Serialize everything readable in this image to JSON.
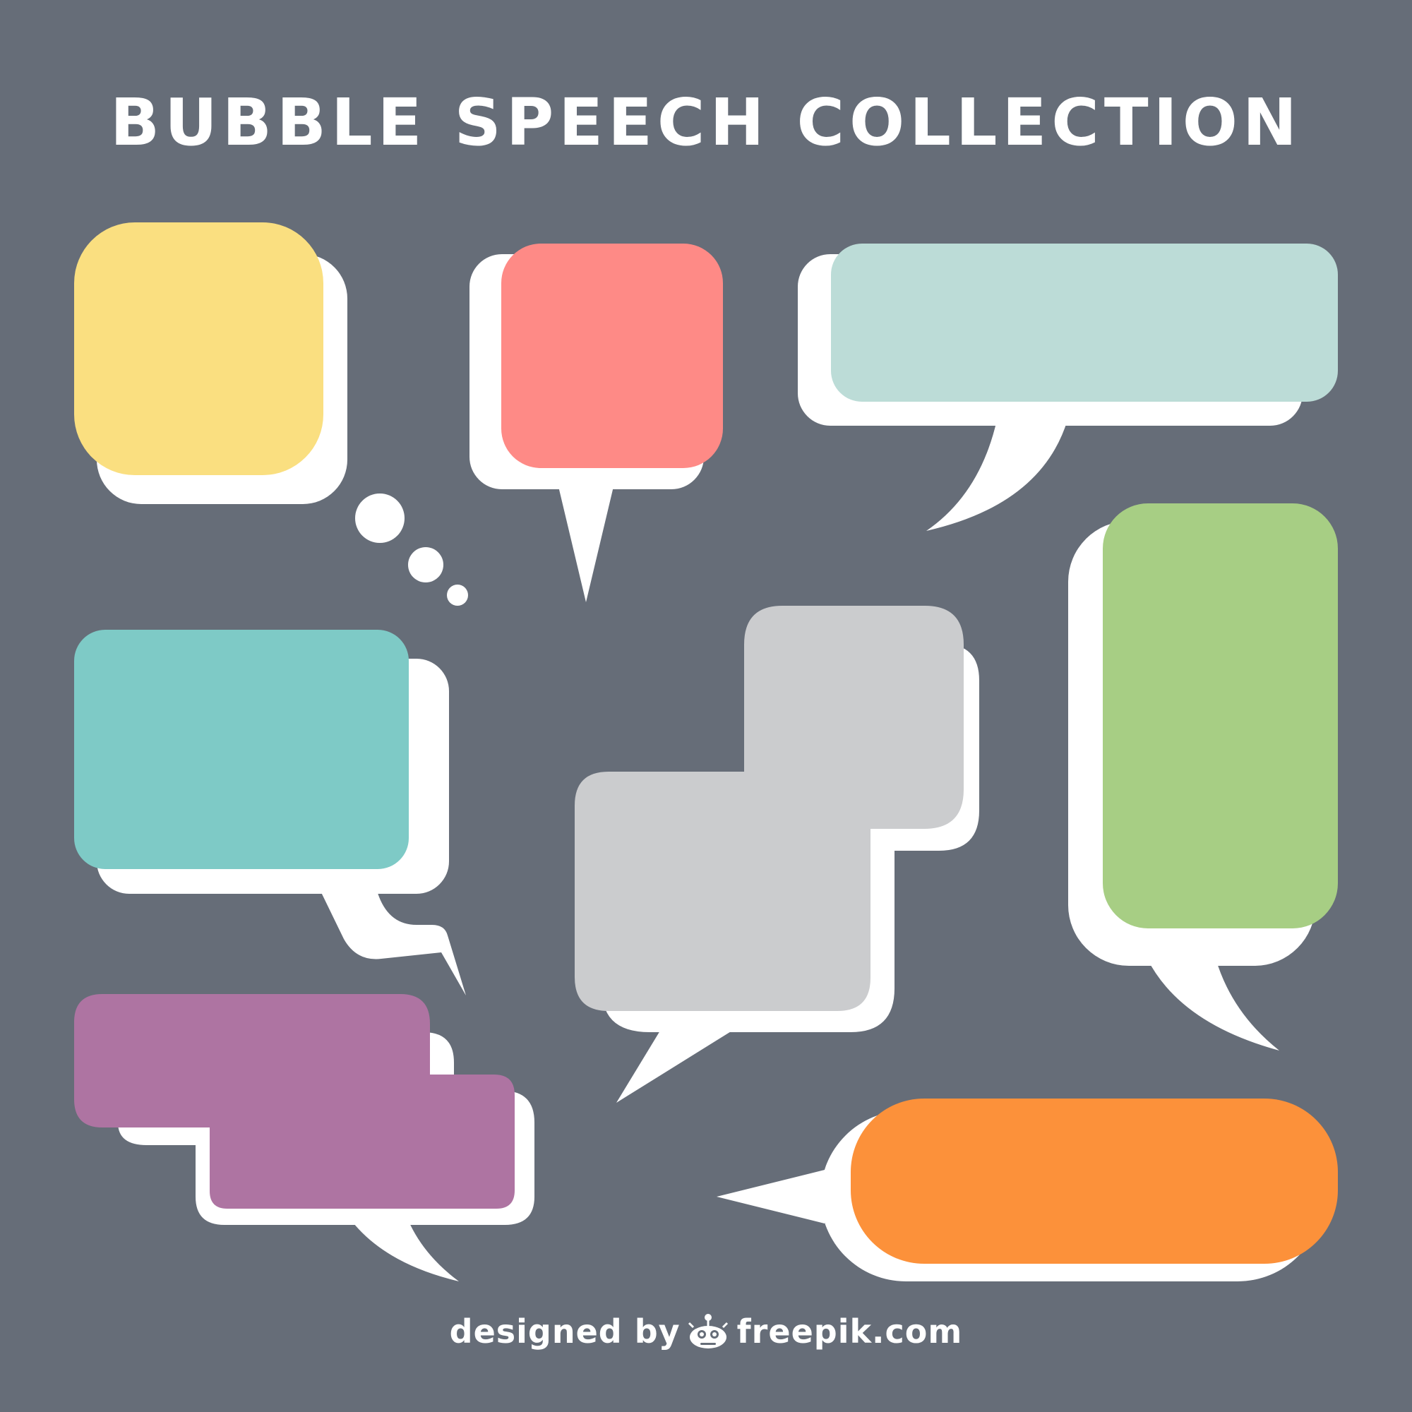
{
  "title": "BUBBLE SPEECH COLLECTION",
  "credit": {
    "prefix": "designed by",
    "brand": "freepik.com",
    "logo_icon": "freepik-logo-icon"
  },
  "colors": {
    "background": "#666d78",
    "shadow": "#ffffff",
    "yellow": "#fadf80",
    "coral": "#fe8a86",
    "pale_mint": "#bcdcd7",
    "green": "#a7ce84",
    "teal": "#7ecac6",
    "grey": "#cbccce",
    "purple": "#ae74a2",
    "orange": "#fc913a"
  }
}
